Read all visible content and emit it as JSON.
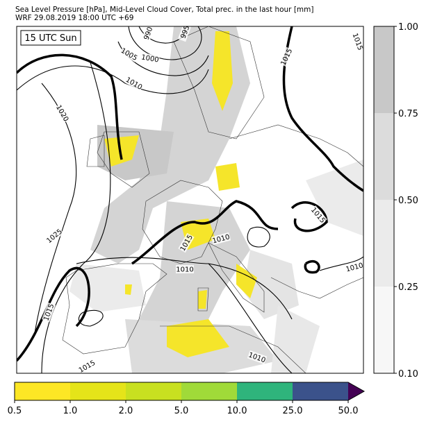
{
  "header": {
    "line1": "Sea Level Pressure [hPa], Mid-Level Cloud Cover, Total prec. in the last hour [mm]",
    "line2": "WRF 29.08.2019 18:00 UTC +69"
  },
  "map": {
    "time_label": "15 UTC Sun",
    "contour_labels": [
      "990",
      "995",
      "1000",
      "1005",
      "1010",
      "1020",
      "1025",
      "1015",
      "1015",
      "1015",
      "1015",
      "1010",
      "1015",
      "1010",
      "1010",
      "1010",
      "1015"
    ]
  },
  "cloud_colorbar": {
    "ticks": [
      "0.10",
      "0.25",
      "0.50",
      "0.75",
      "1.00"
    ]
  },
  "precip_colorbar": {
    "ticks": [
      "0.5",
      "1.0",
      "2.0",
      "5.0",
      "10.0",
      "25.0",
      "50.0"
    ]
  }
}
